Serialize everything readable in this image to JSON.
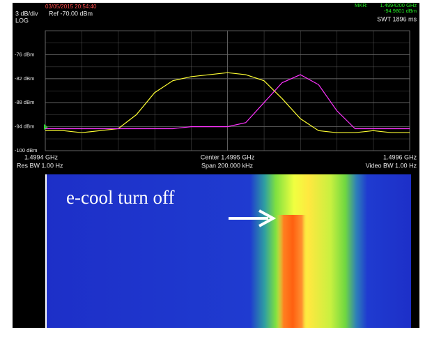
{
  "chart_data": {
    "type": "line",
    "timestamp": "03/05/2015 20:54:40",
    "scale_label": "3 dB/div",
    "ref_label": "Ref -70.00 dBm",
    "scale_type": "LOG",
    "marker_title": "MKR:",
    "marker_freq": "1.4994200 GHz",
    "marker_level": "-94.9801  dBm",
    "sweep_time": "SWT 1896 ms",
    "res_bw": "Res BW 1.00  Hz",
    "span": "Span 200.000 kHz",
    "video_bw": "Video BW 1.00  Hz",
    "annotation": "e-cool turn off",
    "x": [
      1.4994,
      1.49941,
      1.49942,
      1.49943,
      1.49944,
      1.49945,
      1.49946,
      1.49947,
      1.49948,
      1.49949,
      1.4995,
      1.49951,
      1.49952,
      1.49953,
      1.49954,
      1.49955,
      1.49956,
      1.49957,
      1.49958,
      1.49959,
      1.4996
    ],
    "series": [
      {
        "color": "#ffff33",
        "values": [
          -95,
          -95,
          -95.5,
          -95,
          -94.5,
          -91,
          -85.5,
          -82.5,
          -81.5,
          -81,
          -80.5,
          -81,
          -82.5,
          -87,
          -92,
          -95,
          -95.5,
          -95.5,
          -95,
          -95.5,
          -95.5
        ]
      },
      {
        "color": "#ff33ff",
        "values": [
          -94.5,
          -94.5,
          -94.5,
          -94.5,
          -94.5,
          -94.5,
          -94.5,
          -94.5,
          -94,
          -94,
          -94,
          -93,
          -88,
          -83,
          -81,
          -83.5,
          -90,
          -94.5,
          -94.5,
          -94.5,
          -94.5
        ]
      }
    ],
    "xlim": [
      1.4994,
      1.4996
    ],
    "xticks": [
      {
        "value": 1.4994,
        "label": "1.4994 GHz"
      },
      {
        "value": 1.4995,
        "label": "Center 1.4995 GHz"
      },
      {
        "value": 1.4996,
        "label": "1.4996 GHz"
      }
    ],
    "ylim": [
      -100,
      -70
    ],
    "yticks": [
      {
        "value": -76,
        "label": "-76  dBm"
      },
      {
        "value": -82,
        "label": "-82  dBm"
      },
      {
        "value": -88,
        "label": "-88  dBm"
      },
      {
        "value": -94,
        "label": "-94  dBm"
      },
      {
        "value": -100,
        "label": "-100  dBm"
      }
    ],
    "grid": true
  }
}
